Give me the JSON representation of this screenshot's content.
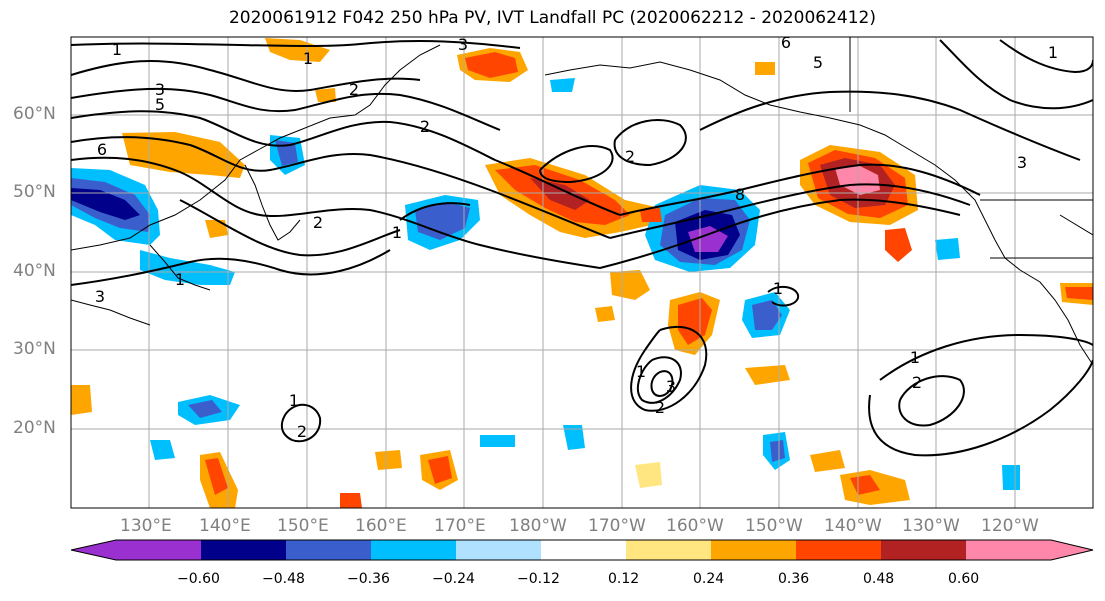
{
  "title": "2020061912 F042 250 hPa PV, IVT Landfall PC (2020062212 - 2020062412)",
  "lat_labels": [
    "60°N",
    "50°N",
    "40°N",
    "30°N",
    "20°N"
  ],
  "lon_labels": [
    "130°E",
    "140°E",
    "150°E",
    "160°E",
    "170°E",
    "180°W",
    "170°W",
    "160°W",
    "150°W",
    "140°W",
    "130°W",
    "120°W"
  ],
  "contour_labels": [
    "1",
    "5",
    "1",
    "6",
    "5",
    "3",
    "3",
    "2",
    "6",
    "8",
    "3",
    "1",
    "2",
    "2",
    "1",
    "2",
    "1",
    "3",
    "1",
    "2",
    "1",
    "1",
    "2",
    "2",
    "3",
    "1"
  ],
  "colorbar": {
    "ticks": [
      "−0.60",
      "−0.48",
      "−0.36",
      "−0.24",
      "−0.12",
      "0.12",
      "0.24",
      "0.36",
      "0.48",
      "0.60"
    ],
    "colors": [
      "#9b30d0",
      "#00008b",
      "#3a5fcd",
      "#00bfff",
      "#b0e2ff",
      "#ffffff",
      "#ffe680",
      "#ffa500",
      "#ff4500",
      "#b22222",
      "#ff88aa",
      "#ff88aa"
    ],
    "extend": "both"
  },
  "map_data": {
    "domain": {
      "lon_min": 120,
      "lon_max": 250,
      "lat_min": 10,
      "lat_max": 70
    },
    "grid_spacing_deg": 10,
    "shaded_field": "250 hPa PV regression (IVT landfall PC)",
    "contour_field": "IVT",
    "colors": {
      "grid": "#aaaaaa",
      "contour": "#000000",
      "coast": "#000000"
    }
  }
}
